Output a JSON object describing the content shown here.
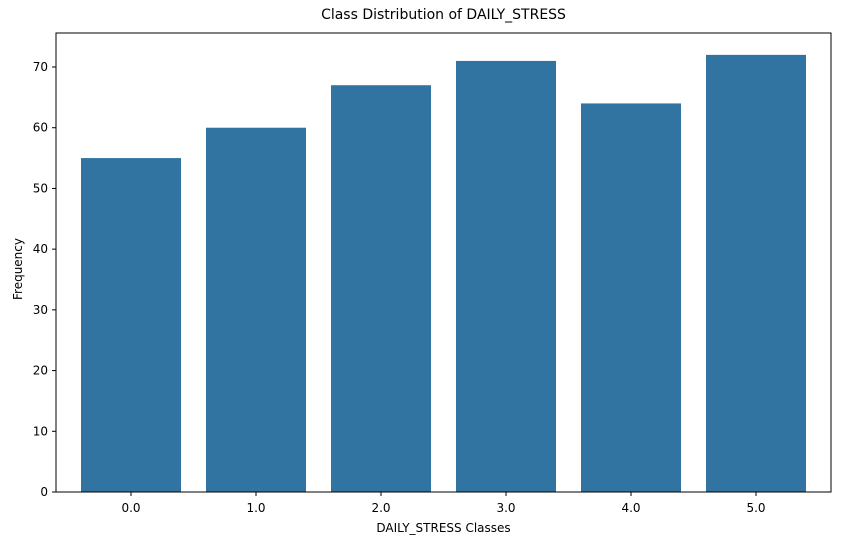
{
  "chart_data": {
    "type": "bar",
    "title": "Class Distribution of DAILY_STRESS",
    "xlabel": "DAILY_STRESS Classes",
    "ylabel": "Frequency",
    "categories": [
      "0.0",
      "1.0",
      "2.0",
      "3.0",
      "4.0",
      "5.0"
    ],
    "values": [
      55,
      60,
      67,
      71,
      64,
      72
    ],
    "ylim": [
      0,
      75.6
    ],
    "yticks": [
      0,
      10,
      20,
      30,
      40,
      50,
      60,
      70
    ],
    "grid": false,
    "bar_color": "#3274a1"
  }
}
